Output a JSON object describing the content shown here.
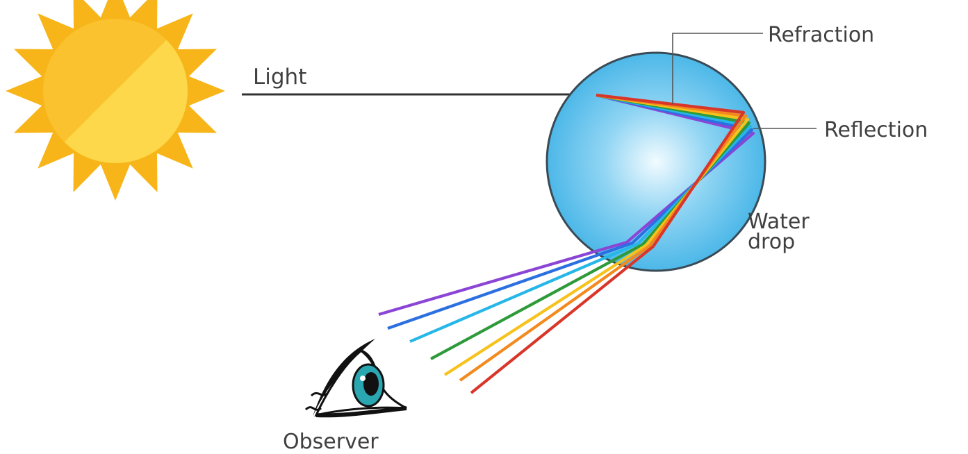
{
  "labels": {
    "light": "Light",
    "refraction": "Refraction",
    "reflection": "Reflection",
    "water_drop_line1": "Water",
    "water_drop_line2": "drop",
    "observer": "Observer"
  },
  "colors": {
    "sun_core": "#FCD84A",
    "sun_core_shade": "#F9C22E",
    "sun_rays": "#F7B519",
    "drop_center": "#F2FBFF",
    "drop_edge": "#3FB2E6",
    "drop_outline": "#3A4A55",
    "arrow": "#333333",
    "leader_line": "#555555",
    "eye_iris": "#2AA6B0",
    "eye_outline": "#111111"
  },
  "spectrum": [
    {
      "name": "red",
      "color": "#D9362A"
    },
    {
      "name": "orange",
      "color": "#F28A1E"
    },
    {
      "name": "yellow",
      "color": "#F6C21B"
    },
    {
      "name": "green",
      "color": "#2E9A3A"
    },
    {
      "name": "cyan",
      "color": "#26B6E8"
    },
    {
      "name": "blue",
      "color": "#2B6FE0"
    },
    {
      "name": "violet",
      "color": "#8B45D6"
    }
  ]
}
